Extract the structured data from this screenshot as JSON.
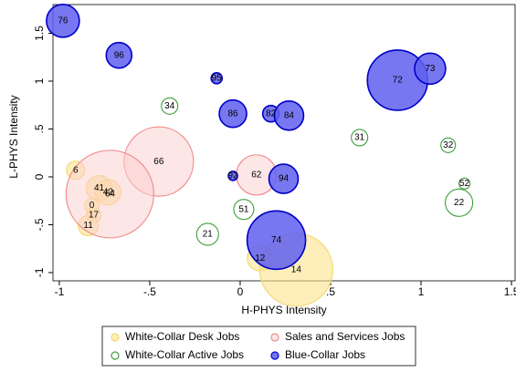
{
  "chart_data": {
    "type": "bubble",
    "xlabel": "H-PHYS Intensity",
    "ylabel": "L-PHYS Intensity",
    "xlim": [
      -1.035,
      1.52
    ],
    "ylim": [
      -1.086,
      1.8
    ],
    "xticks": [
      -1,
      {
        "value": -0.5,
        "label": "-.5"
      },
      0,
      {
        "value": 0.5,
        "label": ".5"
      },
      1,
      1.5
    ],
    "yticks": [
      -1,
      {
        "value": -0.5,
        "label": "-.5"
      },
      0,
      {
        "value": 0.5,
        "label": ".5"
      },
      1,
      1.5
    ],
    "series": [
      {
        "name": "White-Collar Desk Jobs",
        "color": "#f5d76e",
        "fill": "rgba(252,226,140,0.6)",
        "labels": [
          "6",
          "41",
          "42",
          "0",
          "17",
          "11",
          "12",
          "14"
        ],
        "x": [
          -0.91,
          -0.78,
          -0.73,
          -0.82,
          -0.81,
          -0.84,
          0.11,
          0.31
        ],
        "values": [
          0.07,
          -0.12,
          -0.16,
          -0.3,
          -0.4,
          -0.51,
          -0.85,
          -0.97
        ],
        "sizes": [
          100,
          196,
          196,
          64,
          64,
          121,
          196,
          1600
        ]
      },
      {
        "name": "Sales and Services Jobs",
        "color": "#f08a8a",
        "fill": "rgba(252,205,205,0.5)",
        "labels": [
          "66",
          "64",
          "62"
        ],
        "x": [
          -0.45,
          -0.72,
          0.09
        ],
        "values": [
          0.16,
          -0.18,
          0.02
        ],
        "sizes": [
          1444,
          2304,
          484
        ]
      },
      {
        "name": "White-Collar Active Jobs",
        "color": "#3c9e3c",
        "fill": "none",
        "labels": [
          "34",
          "51",
          "21",
          "31",
          "32",
          "52",
          "22"
        ],
        "x": [
          -0.39,
          0.02,
          -0.18,
          0.66,
          1.15,
          1.24,
          1.21
        ],
        "values": [
          0.74,
          -0.34,
          -0.6,
          0.41,
          0.33,
          -0.07,
          -0.27
        ],
        "sizes": [
          81,
          121,
          144,
          81,
          64,
          36,
          225
        ]
      },
      {
        "name": "Blue-Collar Jobs",
        "color": "#0000c8",
        "fill": "rgba(95,95,240,0.85)",
        "labels": [
          "76",
          "96",
          "95",
          "86",
          "82",
          "84",
          "92",
          "94",
          "74",
          "72",
          "73"
        ],
        "x": [
          -0.98,
          -0.67,
          -0.13,
          -0.04,
          0.17,
          0.27,
          -0.04,
          0.24,
          0.2,
          0.87,
          1.05
        ],
        "values": [
          1.63,
          1.27,
          1.03,
          0.66,
          0.66,
          0.64,
          0.01,
          -0.02,
          -0.66,
          1.01,
          1.13
        ],
        "sizes": [
          324,
          196,
          36,
          225,
          81,
          256,
          25,
          256,
          1024,
          1089,
          289
        ]
      }
    ]
  }
}
